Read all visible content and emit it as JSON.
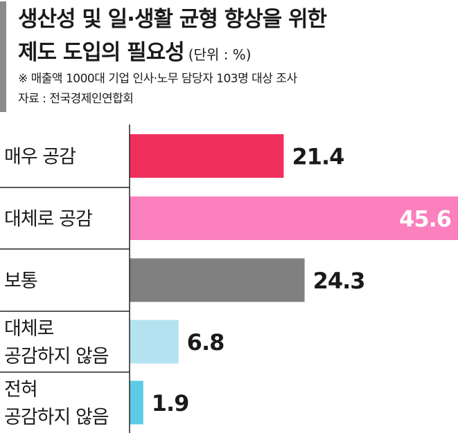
{
  "header": {
    "title_line1": "생산성 및 일·생활 균형 향상을 위한",
    "title_line2": "제도 도입의 필요성",
    "unit": "(단위 : %)",
    "note": "※ 매출액 1000대 기업 인사·노무 담당자 103명 대상 조사",
    "source": "자료 : 전국경제인연합회"
  },
  "chart_data": {
    "type": "bar",
    "orientation": "horizontal",
    "categories": [
      [
        "매우 공감"
      ],
      [
        "대체로 공감"
      ],
      [
        "보통"
      ],
      [
        "대체로",
        "공감하지 않음"
      ],
      [
        "전혀",
        "공감하지 않음"
      ]
    ],
    "values": [
      21.4,
      45.6,
      24.3,
      6.8,
      1.9
    ],
    "value_labels": [
      "21.4",
      "45.6",
      "24.3",
      "6.8",
      "1.9"
    ],
    "colors": [
      "#f0305c",
      "#fb80bd",
      "#808080",
      "#b3e3f1",
      "#5ccbe6"
    ],
    "value_label_colors": [
      "#1a1a1a",
      "#ffffff",
      "#1a1a1a",
      "#1a1a1a",
      "#1a1a1a"
    ],
    "xlim": [
      0,
      45.6
    ],
    "grid": false,
    "legend": "none"
  }
}
